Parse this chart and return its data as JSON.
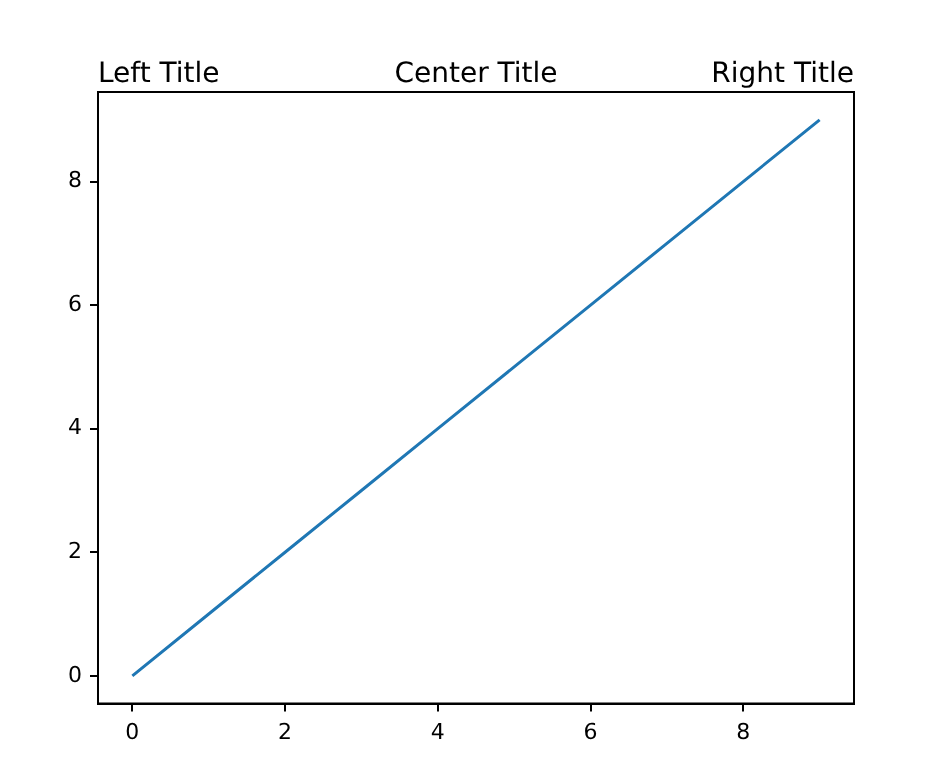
{
  "chart_data": {
    "type": "line",
    "title": "Center Title",
    "annotations": [
      "Left Title",
      "Right Title"
    ],
    "x": [
      0,
      1,
      2,
      3,
      4,
      5,
      6,
      7,
      8,
      9
    ],
    "series": [
      {
        "color": "#1f77b4",
        "values": [
          0,
          1,
          2,
          3,
          4,
          5,
          6,
          7,
          8,
          9
        ]
      }
    ],
    "xlim": [
      -0.45,
      9.45
    ],
    "xticks": [
      0,
      2,
      4,
      6,
      8
    ],
    "ylim": [
      -0.45,
      9.45
    ],
    "yticks": [
      0,
      2,
      4,
      6,
      8
    ],
    "grid": false,
    "legend": false,
    "marker": "none",
    "line_style": "solid"
  }
}
